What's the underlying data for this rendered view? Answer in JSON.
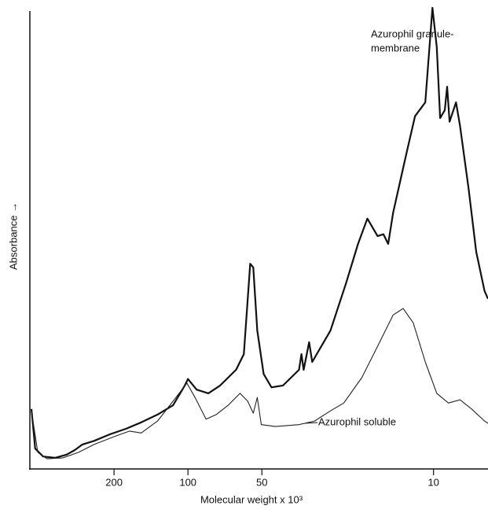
{
  "chart_data": {
    "type": "line",
    "x_label": "Molecular weight x 10³",
    "y_label": "Absorbance →",
    "xscale": "log",
    "xreversed": true,
    "xlim": [
      434,
      6
    ],
    "ylim": [
      0,
      100
    ],
    "xticks": [
      200,
      100,
      50,
      10
    ],
    "grid": false,
    "annotations": [
      "Azurophil granule-",
      "membrane",
      "Azurophil soluble"
    ],
    "series": [
      {
        "color": "#111111",
        "width": 2.2,
        "x": [
          434,
          419,
          389,
          348,
          312,
          289,
          269,
          241,
          208,
          179,
          155,
          133,
          115,
          103,
          100,
          92.2,
          82.6,
          73.9,
          63.7,
          59.2,
          55.8,
          54.2,
          52.2,
          49.2,
          45.7,
          41.0,
          35.3,
          34.5,
          33.8,
          32.1,
          31.2,
          26.3,
          22.7,
          20.3,
          18.6,
          16.9,
          16.0,
          15.3,
          14.6,
          13.0,
          11.9,
          10.8,
          10.1,
          9.7,
          9.4,
          9.0,
          8.8,
          8.6,
          8.1,
          7.8,
          7.2,
          6.7,
          6.2,
          6.0
        ],
        "values": [
          13.0,
          4.4,
          2.7,
          2.4,
          3.1,
          4.1,
          5.3,
          6.1,
          7.5,
          8.7,
          10.1,
          11.8,
          13.8,
          18.1,
          19.5,
          17.2,
          16.4,
          18.1,
          21.5,
          24.9,
          44.5,
          43.7,
          30.0,
          20.6,
          17.7,
          18.1,
          21.5,
          24.9,
          21.5,
          27.5,
          23.2,
          30.0,
          40.3,
          48.8,
          54.3,
          50.5,
          50.9,
          48.8,
          55.6,
          67.6,
          76.5,
          79.5,
          100,
          91.5,
          76.1,
          77.8,
          82.9,
          75.3,
          79.5,
          74.4,
          60.8,
          47.1,
          38.6,
          36.9
        ]
      },
      {
        "color": "#222222",
        "width": 1.1,
        "x": [
          434,
          409,
          375,
          323,
          279,
          241,
          200,
          173,
          155,
          133,
          115,
          101,
          93.6,
          84.4,
          76.7,
          68.6,
          61.4,
          57.1,
          54.2,
          52.2,
          50.3,
          44.1,
          35.3,
          30.5,
          26.3,
          23.2,
          19.6,
          16.9,
          14.6,
          13.3,
          12.1,
          10.8,
          9.7,
          8.7,
          7.8,
          7.0,
          6.2,
          6.0
        ],
        "values": [
          12.6,
          3.6,
          2.2,
          2.4,
          3.6,
          5.3,
          7.0,
          8.2,
          7.8,
          10.4,
          14.7,
          18.6,
          15.5,
          10.8,
          11.8,
          13.8,
          16.4,
          14.7,
          12.1,
          15.5,
          9.6,
          9.2,
          9.6,
          10.4,
          12.6,
          14.3,
          19.8,
          26.6,
          33.4,
          34.8,
          31.7,
          23.2,
          16.4,
          14.3,
          15.0,
          13.0,
          10.4,
          9.9
        ]
      }
    ]
  }
}
